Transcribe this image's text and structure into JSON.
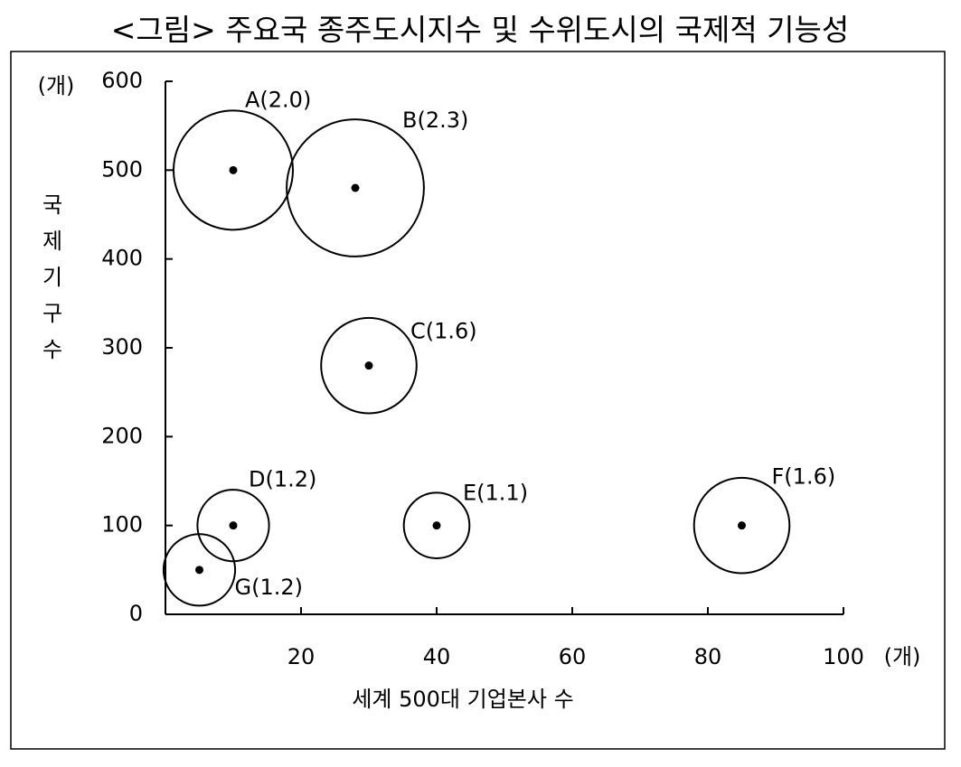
{
  "chart_data": {
    "type": "bubble",
    "title": "<그림> 주요국 종주도시지수 및 수위도시의 국제적 기능성",
    "x_label": "세계 500대 기업본사 수",
    "x_unit": "(개)",
    "y_label": "국제기구수",
    "y_unit": "(개)",
    "labels": [
      "A(2.0)",
      "B(2.3)",
      "C(1.6)",
      "D(1.2)",
      "E(1.1)",
      "F(1.6)",
      "G(1.2)"
    ],
    "x": [
      10,
      28,
      30,
      10,
      40,
      85,
      5
    ],
    "y": [
      500,
      480,
      280,
      100,
      100,
      100,
      50
    ],
    "sizes": [
      2.0,
      2.3,
      1.6,
      1.2,
      1.1,
      1.6,
      1.2
    ],
    "xlim": [
      0,
      100
    ],
    "xticks": [
      20,
      40,
      60,
      80,
      100
    ],
    "ylim": [
      0,
      600
    ],
    "yticks": [
      0,
      100,
      200,
      300,
      400,
      500,
      600
    ],
    "color": "#000000"
  }
}
